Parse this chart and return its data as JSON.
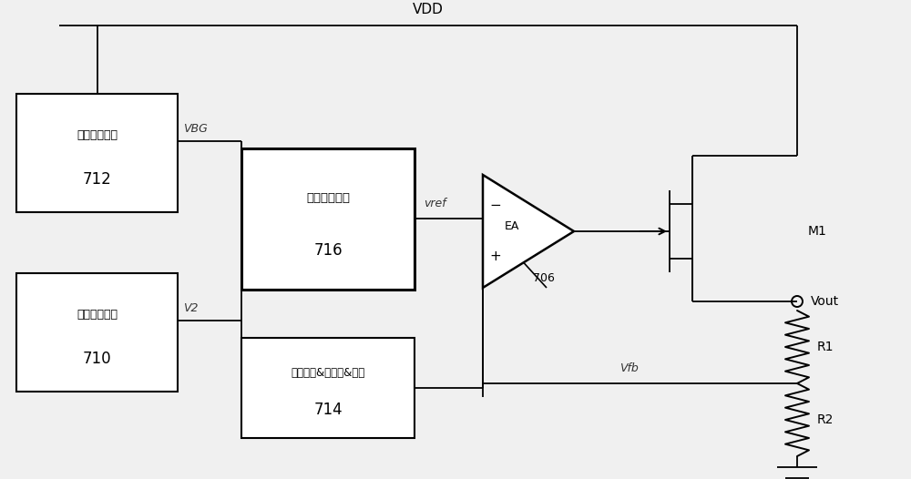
{
  "bg_color": "#f0f0f0",
  "box712_label1": "实际带隙电压",
  "box712_label2": "712",
  "box710_label1": "第二参考电压",
  "box710_label2": "710",
  "box716_label1": "开关与滤波器",
  "box716_label2": "716",
  "box714_label1": "启动逻辑&比较器&定时",
  "box714_label2": "714",
  "label_vdd": "VDD",
  "label_vbg": "VBG",
  "label_v2": "V2",
  "label_vref": "vref",
  "label_vfb": "Vfb",
  "label_ea": "EA",
  "label_706": "706",
  "label_m1": "M1",
  "label_vout": "Vout",
  "label_r1": "R1",
  "label_r2": "R2"
}
